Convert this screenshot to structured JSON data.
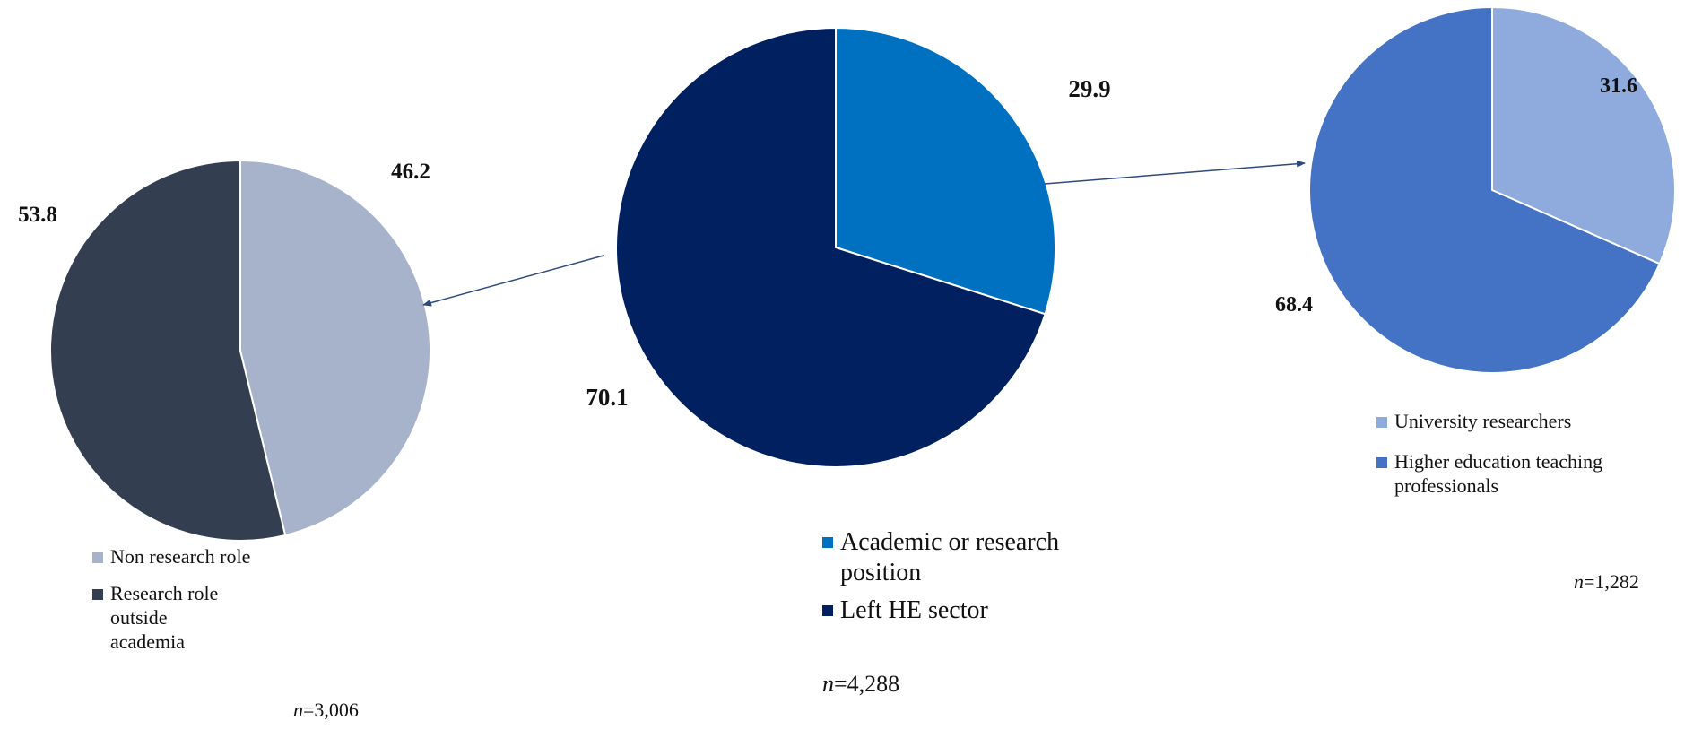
{
  "chart_data": [
    {
      "type": "pie",
      "slices": [
        {
          "label": "Academic or research position",
          "value": 29.9,
          "color": "#0070C0"
        },
        {
          "label": "Left HE sector",
          "value": 70.1,
          "color": "#002060"
        }
      ],
      "n_prefix": "n",
      "n_value": "=4,288"
    },
    {
      "type": "pie",
      "slices": [
        {
          "label": "Non research role",
          "value": 46.2,
          "color": "#A6B3CB"
        },
        {
          "label": "Research role outside academia",
          "value": 53.8,
          "color": "#333F50"
        }
      ],
      "n_prefix": "n",
      "n_value": "=3,006"
    },
    {
      "type": "pie",
      "slices": [
        {
          "label": "University researchers",
          "value": 31.6,
          "color": "#8FAADC"
        },
        {
          "label": "Higher education teaching professionals",
          "value": 68.4,
          "color": "#4472C4"
        }
      ],
      "n_prefix": "n",
      "n_value": "=1,282"
    }
  ]
}
